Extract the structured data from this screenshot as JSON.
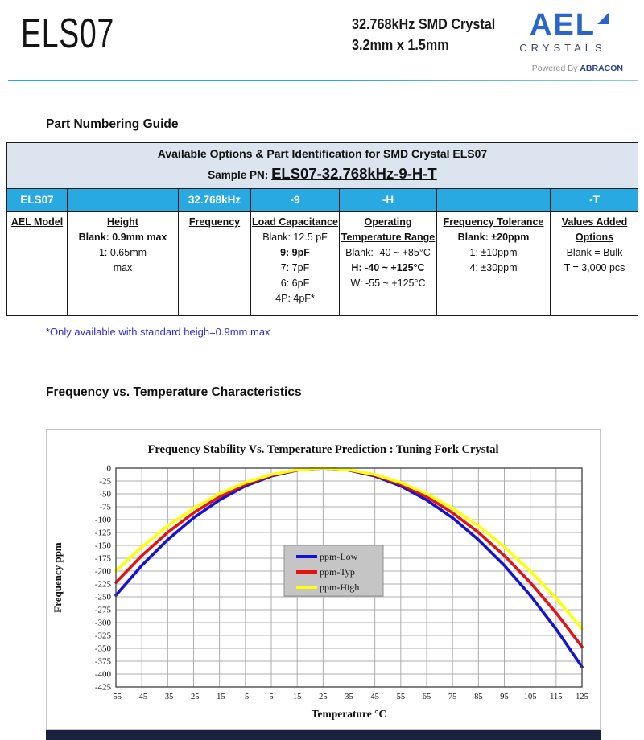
{
  "header": {
    "product": "ELS07",
    "subtitle_line1": "32.768kHz SMD Crystal",
    "subtitle_line2": "3.2mm x 1.5mm",
    "logo": {
      "brand": "AEL",
      "sub": "CRYSTALS",
      "powered_prefix": "Powered By ",
      "powered_brand": "ABRACON"
    }
  },
  "part_numbering": {
    "section_title": "Part Numbering Guide",
    "table_title": "Available Options & Part Identification for SMD Crystal ELS07",
    "sample_pn_label": "Sample PN: ",
    "sample_pn": "ELS07-32.768kHz-9-H-T",
    "code_row": [
      "ELS07",
      "",
      "32.768kHz",
      "-9",
      "-H",
      "",
      "-T"
    ],
    "columns": [
      {
        "header_lines": [
          "AEL Model"
        ],
        "lines": []
      },
      {
        "header_lines": [
          "Height"
        ],
        "lines": [
          {
            "text": "Blank: 0.9mm max",
            "bold": true
          },
          {
            "text": "1: 0.65mm",
            "bold": false
          },
          {
            "text": "max",
            "bold": false
          }
        ]
      },
      {
        "header_lines": [
          "Frequency"
        ],
        "lines": []
      },
      {
        "header_lines": [
          "Load Capacitance"
        ],
        "lines": [
          {
            "text": "Blank: 12.5 pF",
            "bold": false
          },
          {
            "text": "9: 9pF",
            "bold": true
          },
          {
            "text": "7: 7pF",
            "bold": false
          },
          {
            "text": "6: 6pF",
            "bold": false
          },
          {
            "text": "4P: 4pF*",
            "bold": false
          }
        ]
      },
      {
        "header_lines": [
          "Operating",
          "Temperature Range"
        ],
        "lines": [
          {
            "text": "Blank: -40 ~ +85°C",
            "bold": false
          },
          {
            "text": "H: -40 ~ +125°C",
            "bold": true
          },
          {
            "text": "W: -55 ~ +125°C",
            "bold": false
          }
        ]
      },
      {
        "header_lines": [
          "Frequency Tolerance"
        ],
        "lines": [
          {
            "text": "Blank: ±20ppm",
            "bold": true
          },
          {
            "text": "1: ±10ppm",
            "bold": false
          },
          {
            "text": "4: ±30ppm",
            "bold": false
          }
        ]
      },
      {
        "header_lines": [
          "Values Added",
          "Options"
        ],
        "lines": [
          {
            "text": "Blank = Bulk",
            "bold": false
          },
          {
            "text": "T = 3,000 pcs",
            "bold": false
          }
        ]
      }
    ],
    "footnote": "*Only available with standard heigh=0.9mm max"
  },
  "chart_section": {
    "section_title": "Frequency vs. Temperature Characteristics"
  },
  "chart_data": {
    "type": "line",
    "title": "Frequency Stability Vs. Temperature Prediction :  Tuning Fork Crystal",
    "xlabel": "Temperature °C",
    "ylabel": "Frequency ppm",
    "x": [
      -55,
      -45,
      -35,
      -25,
      -15,
      -5,
      5,
      15,
      25,
      35,
      45,
      55,
      65,
      75,
      85,
      95,
      105,
      115,
      125
    ],
    "series": [
      {
        "name": "ppm-Low",
        "color": "#1313d6",
        "values": [
          -247.0,
          -189.1,
          -139.0,
          -96.5,
          -61.8,
          -34.7,
          -15.4,
          -3.9,
          0,
          -3.9,
          -15.4,
          -34.7,
          -61.8,
          -96.5,
          -139.0,
          -189.1,
          -247.0,
          -312.7,
          -386.0
        ]
      },
      {
        "name": "ppm-Typ",
        "color": "#e51212",
        "values": [
          -222.1,
          -170.0,
          -124.9,
          -86.8,
          -55.5,
          -31.2,
          -13.9,
          -3.5,
          0,
          -3.5,
          -13.9,
          -31.2,
          -55.5,
          -86.8,
          -124.9,
          -170.0,
          -222.1,
          -281.1,
          -347.0
        ]
      },
      {
        "name": "ppm-High",
        "color": "#ffff05",
        "values": [
          -199.7,
          -152.9,
          -112.3,
          -78.0,
          -49.9,
          -28.1,
          -12.5,
          -3.1,
          0,
          -3.1,
          -12.5,
          -28.1,
          -49.9,
          -78.0,
          -112.3,
          -152.9,
          -199.7,
          -252.7,
          -312.0
        ]
      }
    ],
    "xlim": [
      -55,
      125
    ],
    "ylim": [
      -425,
      0
    ],
    "x_tick_step": 10,
    "y_tick_step": 25,
    "grid": true,
    "legend_position": "inside-center-left"
  },
  "colors": {
    "accent_blue_row": "#29a9e1",
    "band_bg": "#dce4ef",
    "divider_blue": "#2ba7df",
    "footnote_blue": "#2b2bd5",
    "logo_blue": "#2a65c9",
    "grid_gray": "#adadad",
    "legend_bg": "#c5c5c5",
    "footer_navy": "#1b2240"
  }
}
